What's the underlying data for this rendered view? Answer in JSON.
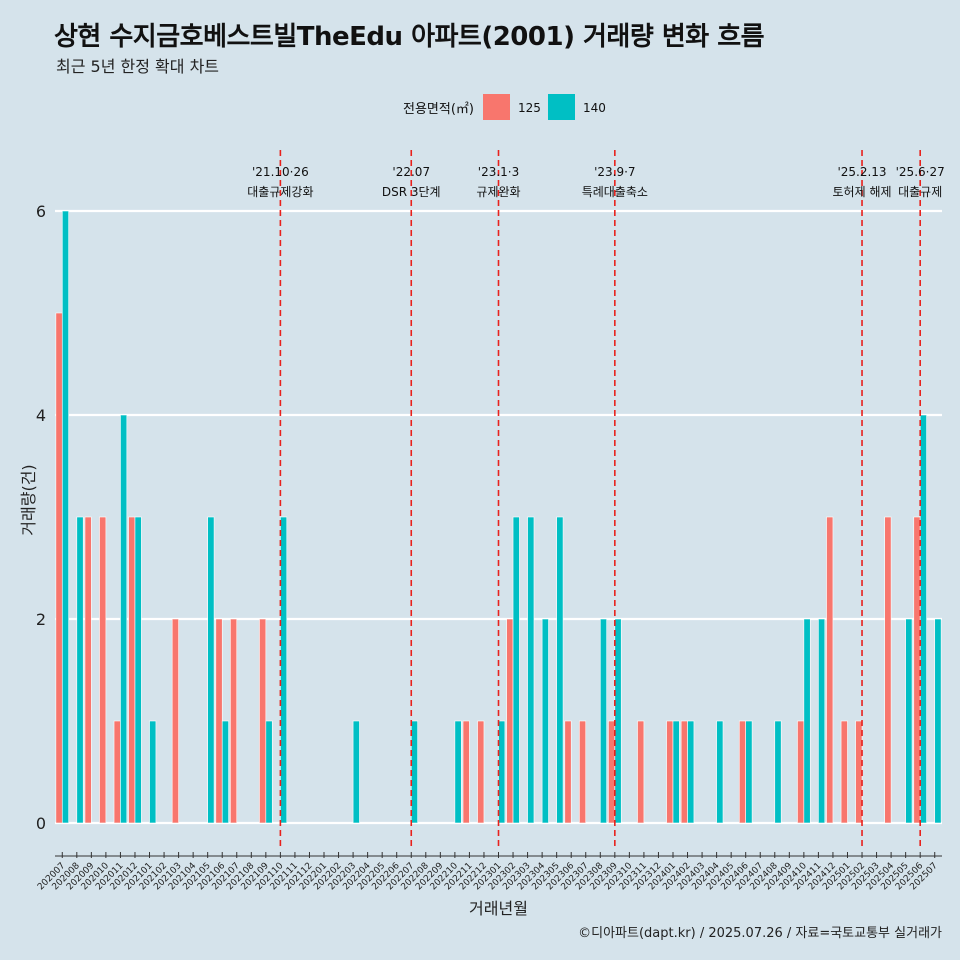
{
  "header": {
    "title": "상현 수지금호베스트빌TheEdu 아파트(2001) 거래량 변화 흐름",
    "subtitle": "최근 5년 한정 확대 차트"
  },
  "footer": {
    "caption": "©디아파트(dapt.kr) / 2025.07.26 / 자료=국토교통부 실거래가"
  },
  "legend": {
    "title": "전용면적(㎡)",
    "items": [
      {
        "label": "125",
        "color": "#f8766d"
      },
      {
        "label": "140",
        "color": "#00bfc4"
      }
    ]
  },
  "chart_data": {
    "type": "bar",
    "title": "상현 수지금호베스트빌TheEdu 아파트(2001) 거래량 변화 흐름",
    "xlabel": "거래년월",
    "ylabel": "거래량(건)",
    "ylim": [
      -0.3,
      6.2
    ],
    "yticks": [
      0,
      2,
      4,
      6
    ],
    "grid": true,
    "legend_position": "top",
    "categories": [
      "202007",
      "202008",
      "202009",
      "202010",
      "202011",
      "202012",
      "202101",
      "202102",
      "202103",
      "202104",
      "202105",
      "202106",
      "202107",
      "202108",
      "202109",
      "202110",
      "202111",
      "202112",
      "202201",
      "202202",
      "202203",
      "202204",
      "202205",
      "202206",
      "202207",
      "202208",
      "202209",
      "202210",
      "202211",
      "202212",
      "202301",
      "202302",
      "202303",
      "202304",
      "202305",
      "202306",
      "202307",
      "202308",
      "202309",
      "202310",
      "202311",
      "202312",
      "202401",
      "202402",
      "202403",
      "202404",
      "202405",
      "202406",
      "202407",
      "202408",
      "202409",
      "202410",
      "202411",
      "202412",
      "202501",
      "202502",
      "202503",
      "202504",
      "202505",
      "202506",
      "202507"
    ],
    "series": [
      {
        "name": "125",
        "color": "#f8766d",
        "values": [
          5,
          0,
          3,
          3,
          1,
          3,
          0,
          0,
          2,
          0,
          0,
          2,
          2,
          0,
          2,
          0,
          0,
          0,
          0,
          0,
          0,
          0,
          0,
          0,
          0,
          0,
          0,
          0,
          1,
          1,
          0,
          2,
          0,
          0,
          0,
          1,
          1,
          0,
          1,
          0,
          1,
          0,
          1,
          1,
          0,
          0,
          0,
          1,
          0,
          0,
          0,
          1,
          0,
          3,
          1,
          1,
          0,
          3,
          0,
          3,
          0
        ]
      },
      {
        "name": "140",
        "color": "#00bfc4",
        "values": [
          6,
          3,
          0,
          0,
          4,
          3,
          1,
          0,
          0,
          0,
          3,
          1,
          0,
          0,
          1,
          3,
          0,
          0,
          0,
          0,
          1,
          0,
          0,
          0,
          1,
          0,
          0,
          1,
          0,
          0,
          1,
          3,
          3,
          2,
          3,
          0,
          0,
          2,
          2,
          0,
          0,
          0,
          1,
          1,
          0,
          1,
          0,
          1,
          0,
          1,
          0,
          2,
          2,
          0,
          0,
          0,
          0,
          0,
          2,
          4,
          2
        ]
      }
    ],
    "annotations": [
      {
        "month": "202110",
        "date": "'21.10·26",
        "label": "대출규제강화"
      },
      {
        "month": "202207",
        "date": "'22.07",
        "label": "DSR 3단계"
      },
      {
        "month": "202301",
        "date": "'23.1·3",
        "label": "규제완화"
      },
      {
        "month": "202309",
        "date": "'23.9·7",
        "label": "특례대출축소"
      },
      {
        "month": "202502",
        "date": "'25.2.13",
        "label": "토허제 해제"
      },
      {
        "month": "202506",
        "date": "'25.6·27",
        "label": "대출규제"
      }
    ]
  }
}
